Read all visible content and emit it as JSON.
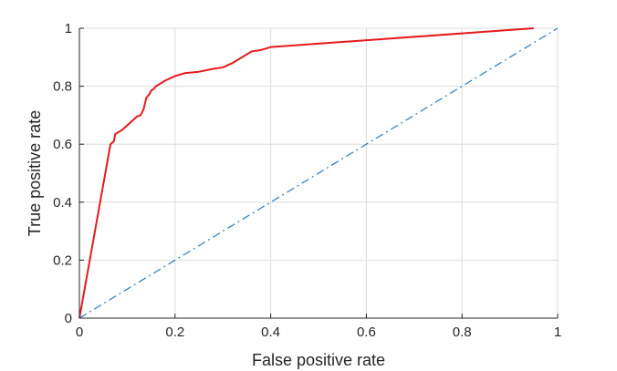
{
  "chart_data": {
    "type": "line",
    "title": "",
    "xlabel": "False positive rate",
    "ylabel": "True positive rate",
    "xlim": [
      0,
      1
    ],
    "ylim": [
      0,
      1
    ],
    "grid": true,
    "x_ticks": [
      0,
      0.2,
      0.4,
      0.6,
      0.8,
      1
    ],
    "y_ticks": [
      0,
      0.2,
      0.4,
      0.6,
      0.8,
      1
    ],
    "x_tick_labels": [
      "0",
      "0.2",
      "0.4",
      "0.6",
      "0.8",
      "1"
    ],
    "y_tick_labels": [
      "0",
      "0.2",
      "0.4",
      "0.6",
      "0.8",
      "1"
    ],
    "series": [
      {
        "style": "solid",
        "color": "#e41a1c",
        "x": [
          0,
          0.065,
          0.072,
          0.075,
          0.08,
          0.09,
          0.1,
          0.11,
          0.12,
          0.128,
          0.134,
          0.14,
          0.145,
          0.147,
          0.15,
          0.155,
          0.16,
          0.17,
          0.18,
          0.2,
          0.22,
          0.25,
          0.28,
          0.3,
          0.32,
          0.34,
          0.35,
          0.36,
          0.38,
          0.4,
          0.95
        ],
        "y": [
          0,
          0.6,
          0.61,
          0.635,
          0.64,
          0.65,
          0.665,
          0.68,
          0.695,
          0.7,
          0.72,
          0.76,
          0.77,
          0.775,
          0.785,
          0.79,
          0.8,
          0.81,
          0.82,
          0.835,
          0.845,
          0.85,
          0.86,
          0.865,
          0.88,
          0.9,
          0.91,
          0.92,
          0.925,
          0.935,
          1.0
        ]
      },
      {
        "style": "dash-dot",
        "color": "#2a7cbc",
        "x": [
          0,
          1
        ],
        "y": [
          0,
          1
        ]
      }
    ]
  }
}
